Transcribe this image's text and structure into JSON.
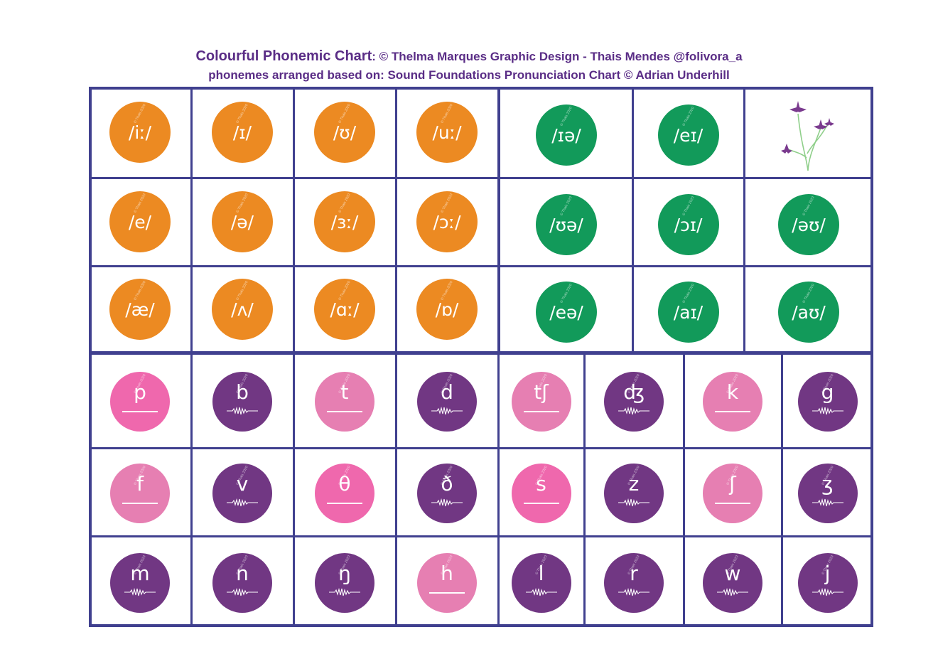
{
  "header": {
    "title_main": "Colourful Phonemic Chart",
    "title_rest": ": © Thelma Marques Graphic Design - Thais Mendes @folivora_a",
    "credit": "phonemes arranged based on: Sound Foundations Pronunciation Chart © Adrian Underhill"
  },
  "watermark": "© Thais 2020",
  "colors": {
    "border": "#40408f",
    "monophthong": "#ec8a22",
    "diphthong": "#129a5a",
    "unvoiced_consonant": "#ef68ad",
    "voiced_consonant": "#713783",
    "title": "#5a2d86"
  },
  "decoration": {
    "icon": "flower-plant-icon"
  },
  "monophthongs": [
    {
      "symbol": "/iː/"
    },
    {
      "symbol": "/ɪ/"
    },
    {
      "symbol": "/ʊ/"
    },
    {
      "symbol": "/uː/"
    },
    {
      "symbol": "/e/"
    },
    {
      "symbol": "/ə/"
    },
    {
      "symbol": "/ɜː/"
    },
    {
      "symbol": "/ɔː/"
    },
    {
      "symbol": "/æ/"
    },
    {
      "symbol": "/ʌ/"
    },
    {
      "symbol": "/ɑː/"
    },
    {
      "symbol": "/ɒ/"
    }
  ],
  "diphthongs": [
    {
      "symbol": "/ɪə/"
    },
    {
      "symbol": "/eɪ/"
    },
    {
      "symbol": "/ʊə/"
    },
    {
      "symbol": "/ɔɪ/"
    },
    {
      "symbol": "/əʊ/"
    },
    {
      "symbol": "/eə/"
    },
    {
      "symbol": "/aɪ/"
    },
    {
      "symbol": "/aʊ/"
    }
  ],
  "consonants": [
    {
      "symbol": "p",
      "voiced": false
    },
    {
      "symbol": "b",
      "voiced": true
    },
    {
      "symbol": "t",
      "voiced": false
    },
    {
      "symbol": "d",
      "voiced": true
    },
    {
      "symbol": "tʃ",
      "voiced": false
    },
    {
      "symbol": "ʤ",
      "voiced": true
    },
    {
      "symbol": "k",
      "voiced": false
    },
    {
      "symbol": "g",
      "voiced": true
    },
    {
      "symbol": "f",
      "voiced": false
    },
    {
      "symbol": "v",
      "voiced": true
    },
    {
      "symbol": "θ",
      "voiced": false
    },
    {
      "symbol": "ð",
      "voiced": true
    },
    {
      "symbol": "s",
      "voiced": false
    },
    {
      "symbol": "z",
      "voiced": true
    },
    {
      "symbol": "ʃ",
      "voiced": false
    },
    {
      "symbol": "ʒ",
      "voiced": true
    },
    {
      "symbol": "m",
      "voiced": true
    },
    {
      "symbol": "n",
      "voiced": true
    },
    {
      "symbol": "ŋ",
      "voiced": true
    },
    {
      "symbol": "h",
      "voiced": false
    },
    {
      "symbol": "l",
      "voiced": true
    },
    {
      "symbol": "r",
      "voiced": true
    },
    {
      "symbol": "w",
      "voiced": true
    },
    {
      "symbol": "j",
      "voiced": true
    }
  ]
}
